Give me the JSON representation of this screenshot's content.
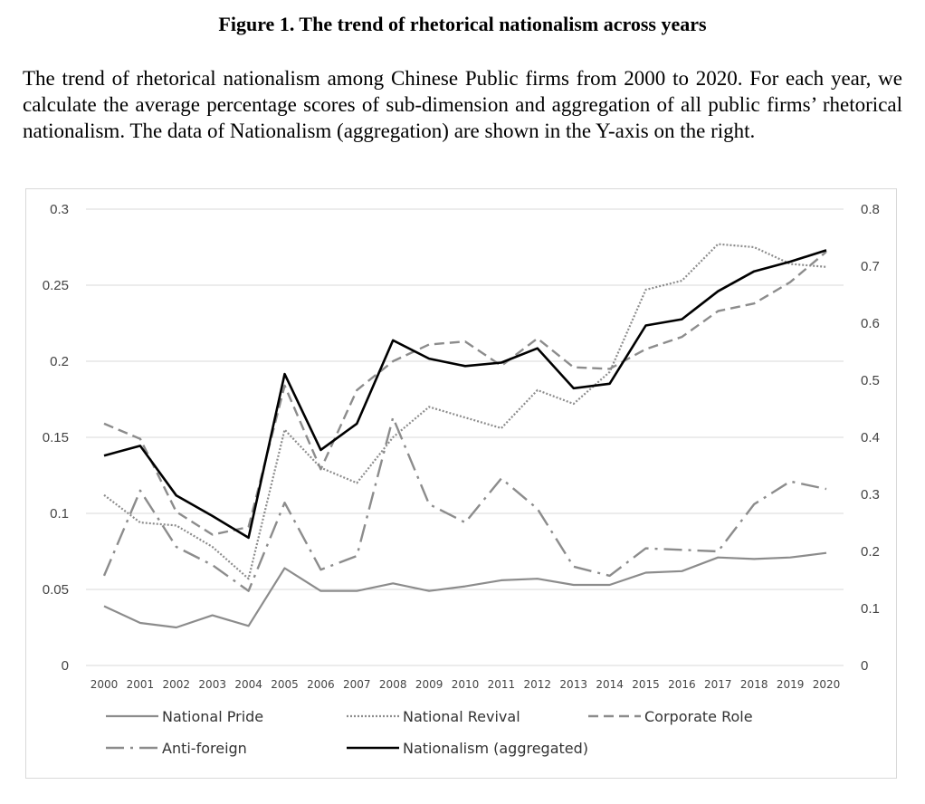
{
  "title": "Figure 1. The trend of rhetorical nationalism across years",
  "caption": "The trend of rhetorical nationalism among Chinese Public firms from 2000 to 2020. For each year, we calculate the average percentage scores of sub-dimension and aggregation of all public firms’ rhetorical nationalism. The data of Nationalism (aggregation) are shown in the Y-axis on the right.",
  "chart_data": {
    "type": "line",
    "x": [
      "2000",
      "2001",
      "2002",
      "2003",
      "2004",
      "2005",
      "2006",
      "2007",
      "2008",
      "2009",
      "2010",
      "2011",
      "2012",
      "2013",
      "2014",
      "2015",
      "2016",
      "2017",
      "2018",
      "2019",
      "2020"
    ],
    "ylim_left": [
      0,
      0.3
    ],
    "ylim_right": [
      0,
      0.8
    ],
    "yticks_left": [
      "0",
      "0.05",
      "0.1",
      "0.15",
      "0.2",
      "0.25",
      "0.3"
    ],
    "yticks_right": [
      "0",
      "0.1",
      "0.2",
      "0.3",
      "0.4",
      "0.5",
      "0.6",
      "0.7",
      "0.8"
    ],
    "grid": true,
    "legend_position": "bottom",
    "series": [
      {
        "name": "National Pride",
        "axis": "left",
        "style": "solid",
        "color": "#8c8c8c",
        "values": [
          0.039,
          0.028,
          0.025,
          0.033,
          0.026,
          0.064,
          0.049,
          0.049,
          0.054,
          0.049,
          0.052,
          0.056,
          0.057,
          0.053,
          0.053,
          0.061,
          0.062,
          0.071,
          0.07,
          0.071,
          0.074
        ]
      },
      {
        "name": "National Revival",
        "axis": "left",
        "style": "dotted",
        "color": "#8c8c8c",
        "values": [
          0.112,
          0.094,
          0.092,
          0.078,
          0.057,
          0.155,
          0.13,
          0.12,
          0.15,
          0.17,
          0.163,
          0.156,
          0.181,
          0.172,
          0.193,
          0.247,
          0.253,
          0.277,
          0.275,
          0.264,
          0.262
        ]
      },
      {
        "name": "Corporate Role",
        "axis": "left",
        "style": "dashed",
        "color": "#8c8c8c",
        "values": [
          0.159,
          0.149,
          0.101,
          0.086,
          0.091,
          0.184,
          0.129,
          0.181,
          0.2,
          0.211,
          0.213,
          0.197,
          0.215,
          0.196,
          0.195,
          0.208,
          0.216,
          0.233,
          0.238,
          0.252,
          0.272
        ]
      },
      {
        "name": "Anti-foreign",
        "axis": "left",
        "style": "dashdot",
        "color": "#8c8c8c",
        "values": [
          0.059,
          0.115,
          0.078,
          0.066,
          0.049,
          0.107,
          0.063,
          0.072,
          0.163,
          0.106,
          0.094,
          0.123,
          0.103,
          0.065,
          0.059,
          0.077,
          0.076,
          0.075,
          0.106,
          0.121,
          0.116
        ]
      },
      {
        "name": "Nationalism (aggregated)",
        "axis": "right",
        "style": "solid",
        "color": "#000000",
        "values": [
          0.368,
          0.385,
          0.298,
          0.262,
          0.224,
          0.511,
          0.378,
          0.424,
          0.57,
          0.538,
          0.525,
          0.531,
          0.556,
          0.486,
          0.494,
          0.596,
          0.607,
          0.656,
          0.691,
          0.708,
          0.728
        ]
      }
    ]
  }
}
